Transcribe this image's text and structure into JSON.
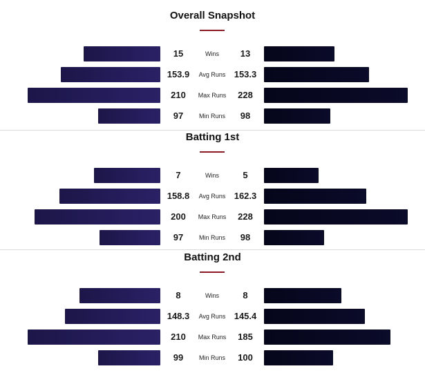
{
  "colors": {
    "left_bar_start": "#1c1649",
    "left_bar_end": "#2a2166",
    "right_bar_start": "#05051a",
    "right_bar_end": "#0b0b2a",
    "accent": "#8b1a24"
  },
  "chart_data": [
    {
      "type": "bar",
      "orientation": "diverging-horizontal",
      "title": "Overall Snapshot",
      "categories": [
        "Wins",
        "Avg Runs",
        "Max Runs",
        "Min Runs"
      ],
      "series": [
        {
          "values": [
            "15",
            "153.9",
            "210",
            "97"
          ]
        },
        {
          "values": [
            "13",
            "153.3",
            "228",
            "98"
          ]
        }
      ],
      "bar_fraction": [
        [
          0.58,
          0.49
        ],
        [
          0.75,
          0.73
        ],
        [
          1.0,
          1.0
        ],
        [
          0.47,
          0.46
        ]
      ]
    },
    {
      "type": "bar",
      "orientation": "diverging-horizontal",
      "title": "Batting 1st",
      "categories": [
        "Wins",
        "Avg Runs",
        "Max Runs",
        "Min Runs"
      ],
      "series": [
        {
          "values": [
            "7",
            "158.8",
            "200",
            "97"
          ]
        },
        {
          "values": [
            "5",
            "162.3",
            "228",
            "98"
          ]
        }
      ],
      "bar_fraction": [
        [
          0.5,
          0.38
        ],
        [
          0.76,
          0.71
        ],
        [
          0.95,
          1.0
        ],
        [
          0.46,
          0.42
        ]
      ]
    },
    {
      "type": "bar",
      "orientation": "diverging-horizontal",
      "title": "Batting 2nd",
      "categories": [
        "Wins",
        "Avg Runs",
        "Max Runs",
        "Min Runs"
      ],
      "series": [
        {
          "values": [
            "8",
            "148.3",
            "210",
            "99"
          ]
        },
        {
          "values": [
            "8",
            "145.4",
            "185",
            "100"
          ]
        }
      ],
      "bar_fraction": [
        [
          0.61,
          0.54
        ],
        [
          0.72,
          0.7
        ],
        [
          1.0,
          0.88
        ],
        [
          0.47,
          0.48
        ]
      ]
    }
  ]
}
